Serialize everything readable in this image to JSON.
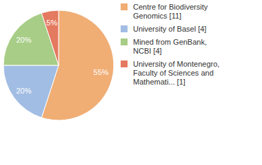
{
  "chart_data": {
    "type": "pie",
    "categories": [
      "Centre for Biodiversity Genomics [11]",
      "University of Basel [4]",
      "Mined from GenBank, NCBI [4]",
      "University of Montenegro, Faculty of Sciences and Mathemati... [1]"
    ],
    "values": [
      55,
      20,
      20,
      5
    ],
    "value_labels": [
      "55%",
      "20%",
      "20%",
      "5%"
    ],
    "colors": [
      "#f0ad74",
      "#a2bde3",
      "#a7cd86",
      "#e47a60"
    ],
    "data_labels": true,
    "legend": "right"
  }
}
